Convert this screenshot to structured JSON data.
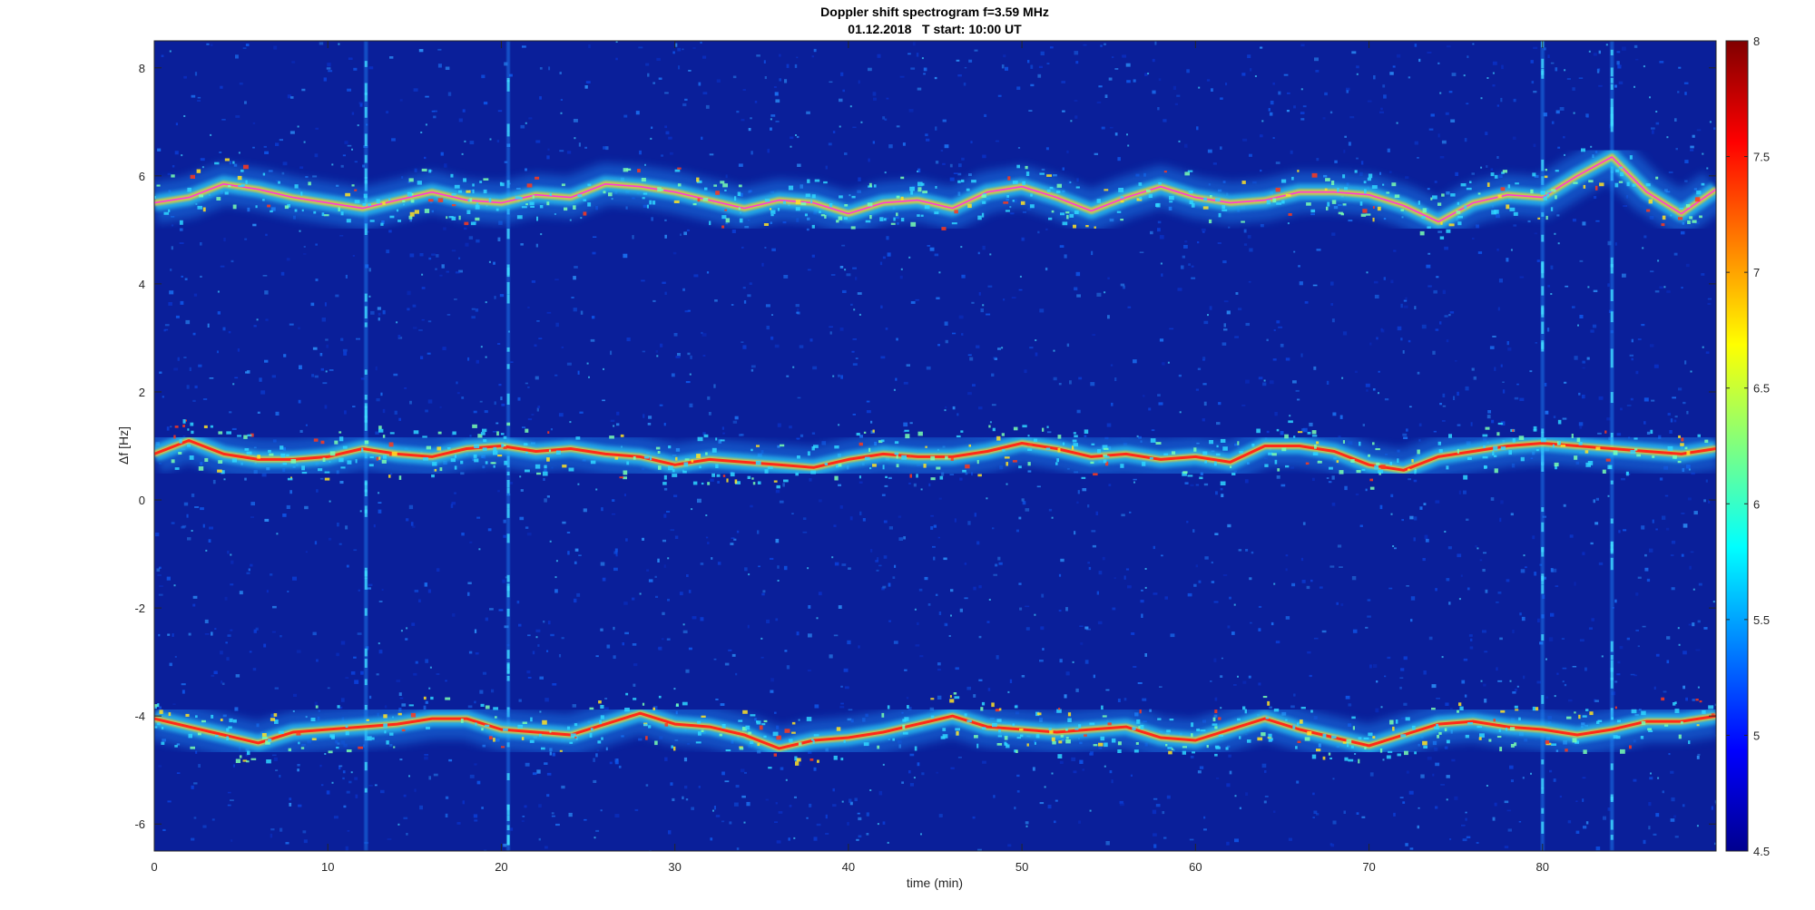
{
  "chart_data": {
    "type": "heatmap",
    "title": "Doppler shift spectrogram f=3.59 MHz",
    "subtitle": "01.12.2018   T start: 10:00 UT",
    "xlabel": "time (min)",
    "ylabel": "Δf [Hz]",
    "xlim": [
      0,
      90
    ],
    "ylim": [
      -6.5,
      8.5
    ],
    "x_ticks": [
      0,
      10,
      20,
      30,
      40,
      50,
      60,
      70,
      80
    ],
    "y_ticks": [
      -6,
      -4,
      -2,
      0,
      2,
      4,
      6,
      8
    ],
    "colorbar": {
      "range": [
        4.5,
        8
      ],
      "ticks": [
        4.5,
        5,
        5.5,
        6,
        6.5,
        7,
        7.5,
        8
      ],
      "colormap": "jet"
    },
    "background_color": "#0a1f9a",
    "series": [
      {
        "x": [
          0,
          2,
          4,
          6,
          8,
          10,
          12,
          14,
          16,
          18,
          20,
          22,
          24,
          26,
          28,
          30,
          32,
          34,
          36,
          38,
          40,
          42,
          44,
          46,
          48,
          50,
          52,
          54,
          56,
          58,
          60,
          62,
          64,
          66,
          68,
          70,
          72,
          74,
          76,
          78,
          80,
          82,
          84,
          86,
          88,
          90
        ],
        "values": [
          5.5,
          5.6,
          5.85,
          5.75,
          5.6,
          5.5,
          5.4,
          5.55,
          5.7,
          5.55,
          5.5,
          5.65,
          5.6,
          5.85,
          5.8,
          5.7,
          5.55,
          5.4,
          5.55,
          5.5,
          5.3,
          5.5,
          5.55,
          5.4,
          5.7,
          5.8,
          5.6,
          5.35,
          5.6,
          5.8,
          5.6,
          5.5,
          5.55,
          5.7,
          5.7,
          5.65,
          5.45,
          5.15,
          5.5,
          5.65,
          5.6,
          6.0,
          6.35,
          5.7,
          5.3,
          5.75
        ]
      },
      {
        "x": [
          0,
          2,
          4,
          6,
          8,
          10,
          12,
          14,
          16,
          18,
          20,
          22,
          24,
          26,
          28,
          30,
          32,
          34,
          36,
          38,
          40,
          42,
          44,
          46,
          48,
          50,
          52,
          54,
          56,
          58,
          60,
          62,
          64,
          66,
          68,
          70,
          72,
          74,
          76,
          78,
          80,
          82,
          84,
          86,
          88,
          90
        ],
        "values": [
          0.85,
          1.1,
          0.85,
          0.75,
          0.75,
          0.8,
          0.95,
          0.85,
          0.8,
          0.95,
          1.0,
          0.9,
          0.95,
          0.85,
          0.8,
          0.65,
          0.75,
          0.7,
          0.65,
          0.6,
          0.75,
          0.85,
          0.8,
          0.8,
          0.9,
          1.05,
          0.95,
          0.8,
          0.85,
          0.75,
          0.8,
          0.7,
          1.0,
          1.0,
          0.9,
          0.65,
          0.55,
          0.8,
          0.9,
          1.0,
          1.05,
          1.0,
          0.95,
          0.9,
          0.85,
          0.95
        ]
      },
      {
        "x": [
          0,
          2,
          4,
          6,
          8,
          10,
          12,
          14,
          16,
          18,
          20,
          22,
          24,
          26,
          28,
          30,
          32,
          34,
          36,
          38,
          40,
          42,
          44,
          46,
          48,
          50,
          52,
          54,
          56,
          58,
          60,
          62,
          64,
          66,
          68,
          70,
          72,
          74,
          76,
          78,
          80,
          82,
          84,
          86,
          88,
          90
        ],
        "values": [
          -4.05,
          -4.2,
          -4.35,
          -4.5,
          -4.3,
          -4.25,
          -4.2,
          -4.15,
          -4.05,
          -4.05,
          -4.25,
          -4.3,
          -4.35,
          -4.15,
          -3.95,
          -4.15,
          -4.2,
          -4.35,
          -4.6,
          -4.45,
          -4.4,
          -4.3,
          -4.15,
          -4.0,
          -4.2,
          -4.25,
          -4.3,
          -4.25,
          -4.2,
          -4.4,
          -4.45,
          -4.25,
          -4.05,
          -4.25,
          -4.4,
          -4.55,
          -4.35,
          -4.15,
          -4.1,
          -4.2,
          -4.25,
          -4.35,
          -4.25,
          -4.1,
          -4.1,
          -4.0
        ]
      }
    ],
    "vertical_streaks_x": [
      12.2,
      20.4,
      80,
      84
    ]
  }
}
